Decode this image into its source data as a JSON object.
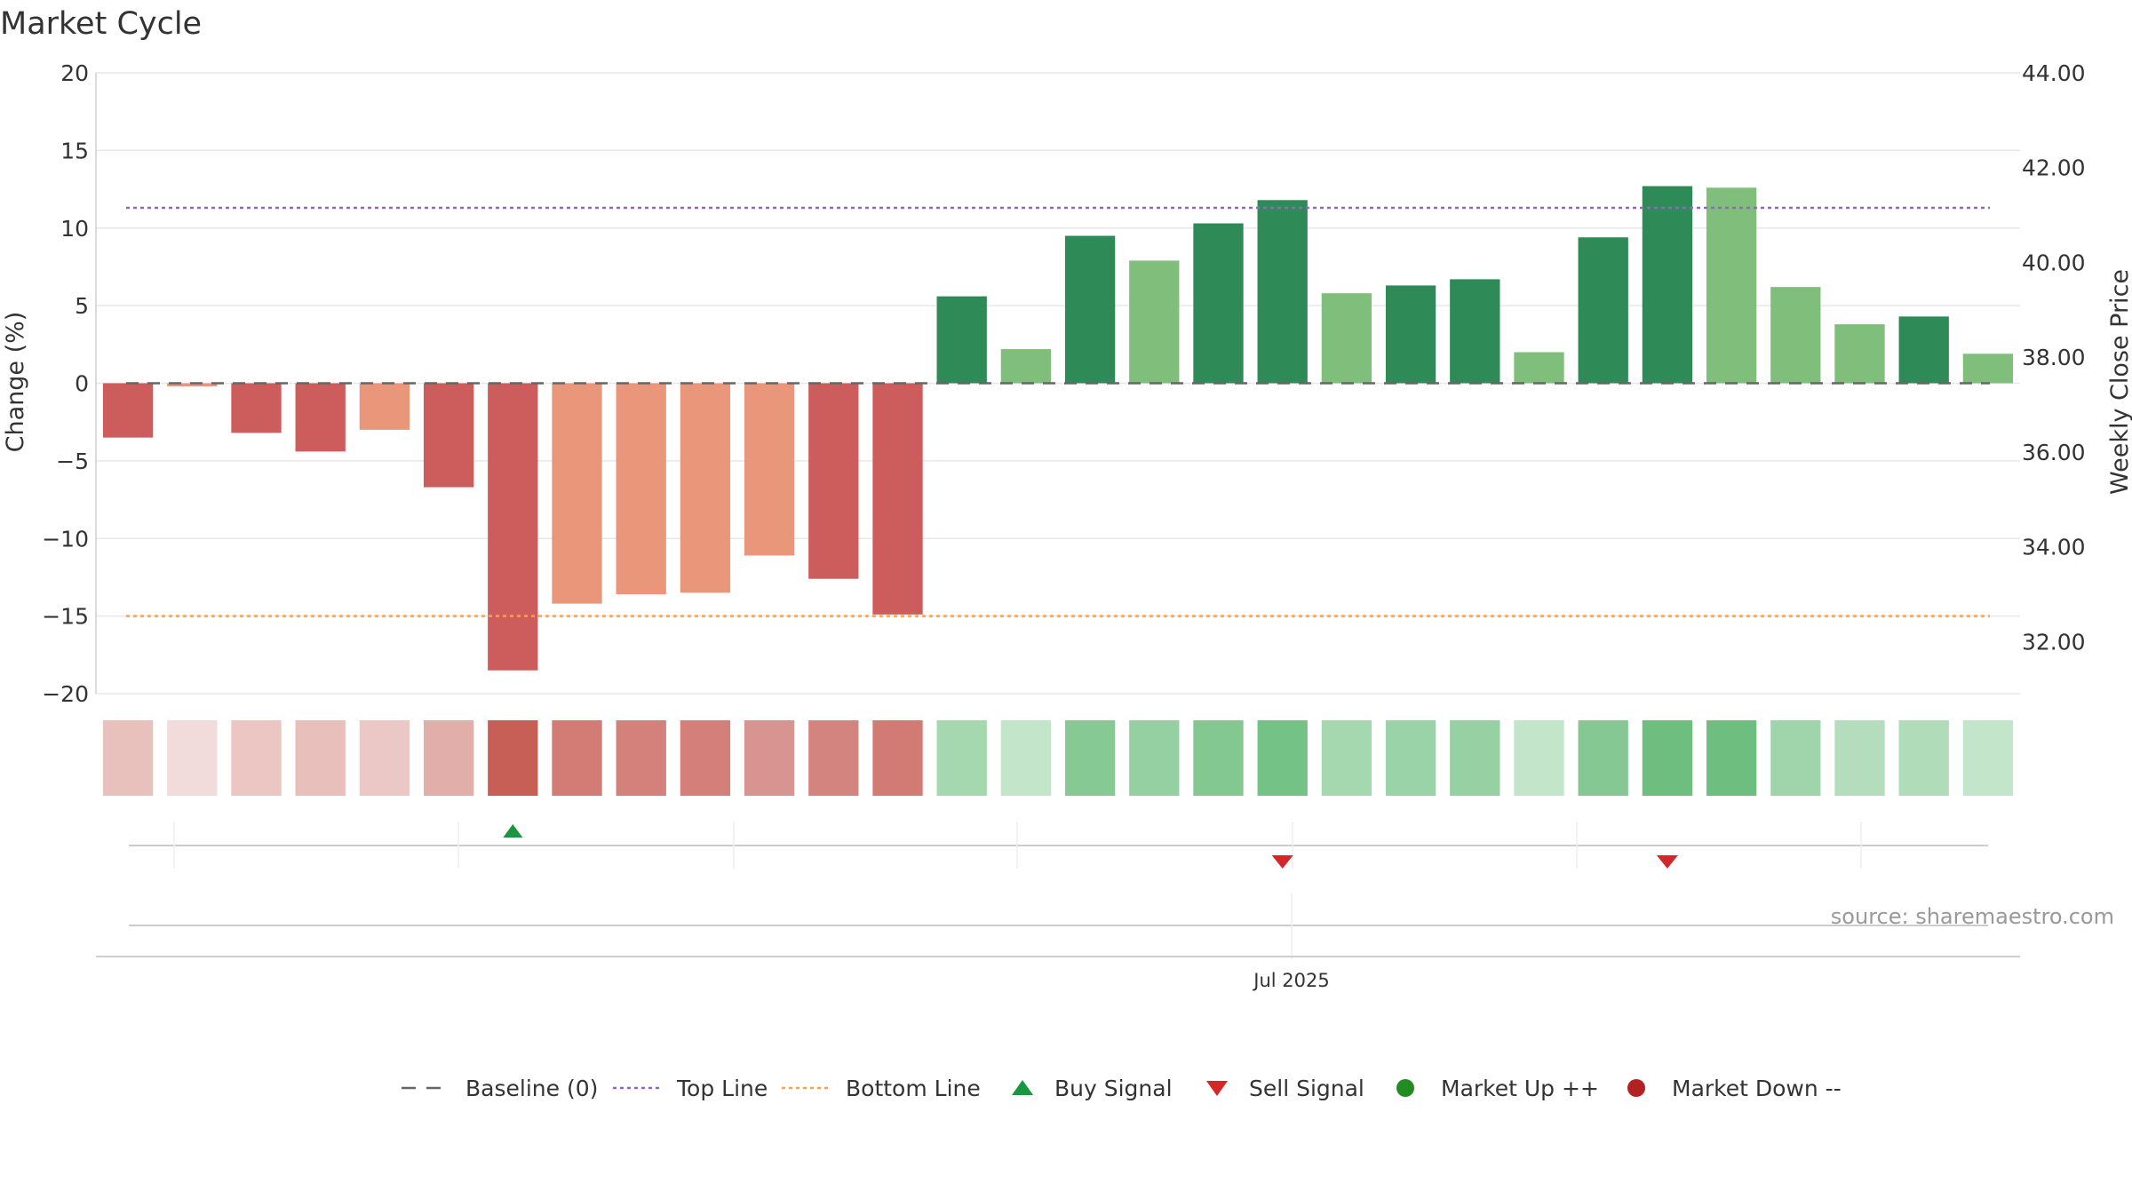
{
  "chart_data": {
    "type": "bar",
    "title": "Market Cycle",
    "ylabel_left": "Change (%)",
    "ylabel_right": "Weekly Close Price",
    "ylim_left": [
      -20,
      20
    ],
    "yticks_left": [
      20,
      15,
      10,
      5,
      0,
      -5,
      -10,
      -15,
      -20
    ],
    "yticks_left_labels": [
      "20",
      "15",
      "10",
      "5",
      "0",
      "−5",
      "−10",
      "−15",
      "−20"
    ],
    "ylim_right": [
      30.9,
      44
    ],
    "yticks_right_labels": [
      "44.00",
      "42.00",
      "40.00",
      "38.00",
      "36.00",
      "34.00",
      "32.00"
    ],
    "yticks_right": [
      44,
      42,
      40,
      38,
      36,
      34,
      32
    ],
    "xtick_label": "Jul 2025",
    "top_line": 11.3,
    "bottom_line": -15,
    "values": [
      -3.5,
      -0.2,
      -3.2,
      -4.4,
      -3.0,
      -6.7,
      -18.5,
      -14.2,
      -13.6,
      -13.5,
      -11.1,
      -12.6,
      -14.9,
      5.6,
      2.2,
      9.5,
      7.9,
      10.3,
      11.8,
      5.8,
      6.3,
      6.7,
      2.0,
      9.4,
      12.7,
      12.6,
      6.2,
      3.8,
      4.3,
      1.9
    ],
    "bar_colors": [
      "#cd5c5c",
      "#e9967a",
      "#cd5c5c",
      "#cd5c5c",
      "#e9967a",
      "#cd5c5c",
      "#cd5c5c",
      "#e9967a",
      "#e9967a",
      "#e9967a",
      "#e9967a",
      "#cd5c5c",
      "#cd5c5c",
      "#2e8b57",
      "#7fbf7b",
      "#2e8b57",
      "#7fbf7b",
      "#2e8b57",
      "#2e8b57",
      "#7fbf7b",
      "#2e8b57",
      "#2e8b57",
      "#7fbf7b",
      "#2e8b57",
      "#2e8b57",
      "#7fbf7b",
      "#7fbf7b",
      "#7fbf7b",
      "#2e8b57",
      "#7fbf7b"
    ],
    "heat_colors": [
      "#e8c1bd",
      "#f2dcdb",
      "#ebc6c3",
      "#e8bfba",
      "#ebc8c5",
      "#e2aeaa",
      "#c85f57",
      "#d37b75",
      "#d5817b",
      "#d47f79",
      "#d79490",
      "#d3847f",
      "#d27a74",
      "#a6d8b0",
      "#c3e5ca",
      "#86c994",
      "#95d0a2",
      "#82c890",
      "#74c285",
      "#a6d8b0",
      "#9ad3a7",
      "#97d1a3",
      "#c3e5ca",
      "#85c893",
      "#6ebe80",
      "#6ebe80",
      "#a0d5ab",
      "#b4ddbd",
      "#b0dcb9",
      "#c3e5ca"
    ],
    "buy_signals": [
      6
    ],
    "sell_signals": [
      18,
      24
    ],
    "annotation": "source: sharemaestro.com",
    "legend": {
      "placement": "bottom",
      "items": [
        {
          "label": "Baseline (0)",
          "marker": "dash",
          "color": "#666666"
        },
        {
          "label": "Top Line",
          "marker": "dot-line",
          "color": "#9467bd"
        },
        {
          "label": "Bottom Line",
          "marker": "dot-line",
          "color": "#ff9f50"
        },
        {
          "label": "Buy Signal",
          "marker": "triangle-up",
          "color": "#1a9641"
        },
        {
          "label": "Sell Signal",
          "marker": "triangle-down",
          "color": "#d62728"
        },
        {
          "label": "Market Up ++",
          "marker": "circle",
          "color": "#228b22"
        },
        {
          "label": "Market Down --",
          "marker": "circle",
          "color": "#b22222"
        }
      ]
    }
  }
}
